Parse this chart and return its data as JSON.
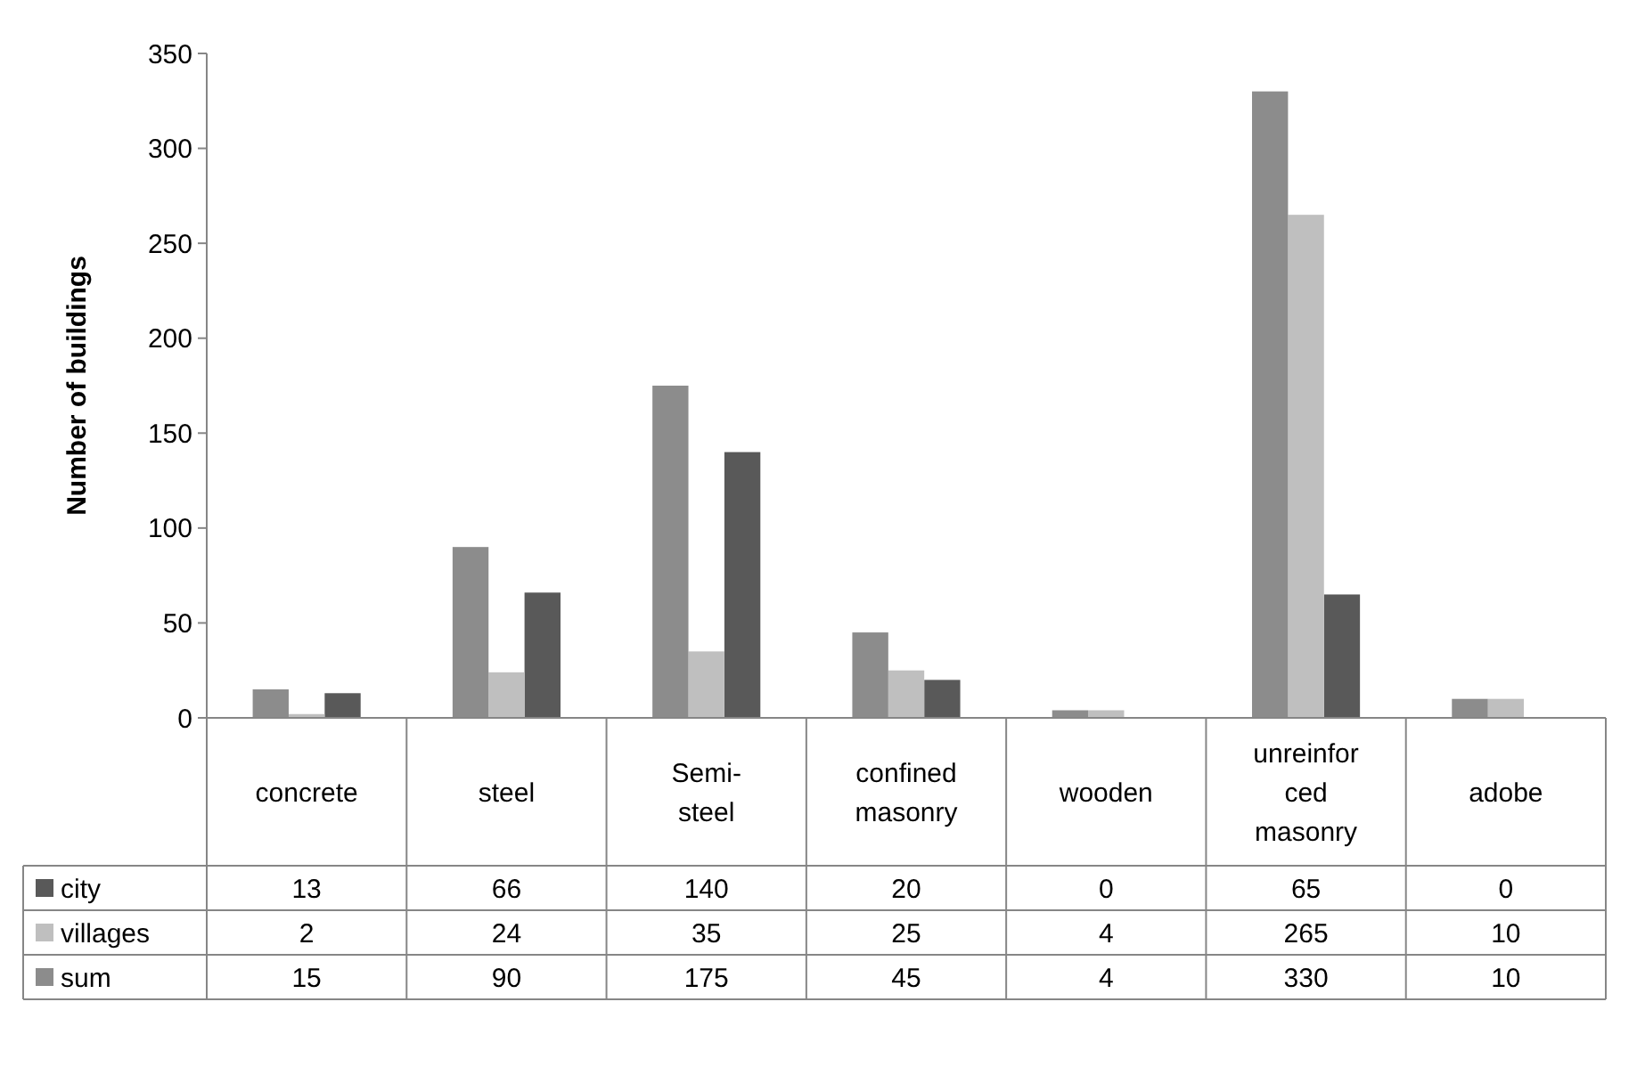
{
  "chart_data": {
    "type": "bar",
    "ylabel": "Number of buildings",
    "categories": [
      "concrete",
      "steel",
      "Semi-steel",
      "confined masonry",
      "wooden",
      "unreinforced masonry",
      "adobe"
    ],
    "series": [
      {
        "name": "city",
        "color": "#595959",
        "values": [
          13,
          66,
          140,
          20,
          0,
          65,
          0
        ]
      },
      {
        "name": "villages",
        "color": "#bfbfbf",
        "values": [
          2,
          24,
          35,
          25,
          4,
          265,
          10
        ]
      },
      {
        "name": "sum",
        "color": "#8c8c8c",
        "values": [
          15,
          90,
          175,
          45,
          4,
          330,
          10
        ]
      }
    ],
    "ylim": [
      0,
      350
    ],
    "yticks": [
      0,
      50,
      100,
      150,
      200,
      250,
      300,
      350
    ],
    "grid": false,
    "legend": "bottom left",
    "data_labels": true
  }
}
